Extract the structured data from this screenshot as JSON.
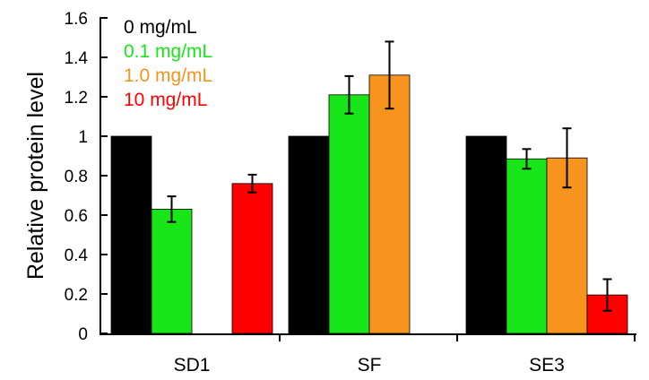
{
  "chart_data": {
    "type": "bar",
    "ylabel": "Relative protein level",
    "xlabel": "",
    "ylim": [
      0,
      1.6
    ],
    "yticks": [
      "0",
      "0.2",
      "0.4",
      "0.6",
      "0.8",
      "1",
      "1.2",
      "1.4",
      "1.6"
    ],
    "categories": [
      "SD1",
      "SF",
      "SE3"
    ],
    "series": [
      {
        "name": "0 mg/mL",
        "color": "#000000",
        "values": [
          1.0,
          1.0,
          1.0
        ],
        "errors": [
          0,
          0,
          0
        ]
      },
      {
        "name": "0.1 mg/mL",
        "color": "#19e619",
        "values": [
          0.63,
          1.21,
          0.885
        ],
        "errors": [
          0.065,
          0.095,
          0.05
        ]
      },
      {
        "name": "1.0 mg/mL",
        "color": "#f7941d",
        "values": [
          null,
          1.31,
          0.89
        ],
        "errors": [
          0,
          0.17,
          0.15
        ]
      },
      {
        "name": "10 mg/mL",
        "color": "#ff0000",
        "values": [
          0.76,
          null,
          0.195
        ],
        "errors": [
          0.045,
          0,
          0.08
        ]
      }
    ],
    "legend_position": "top-left",
    "grid": false
  }
}
